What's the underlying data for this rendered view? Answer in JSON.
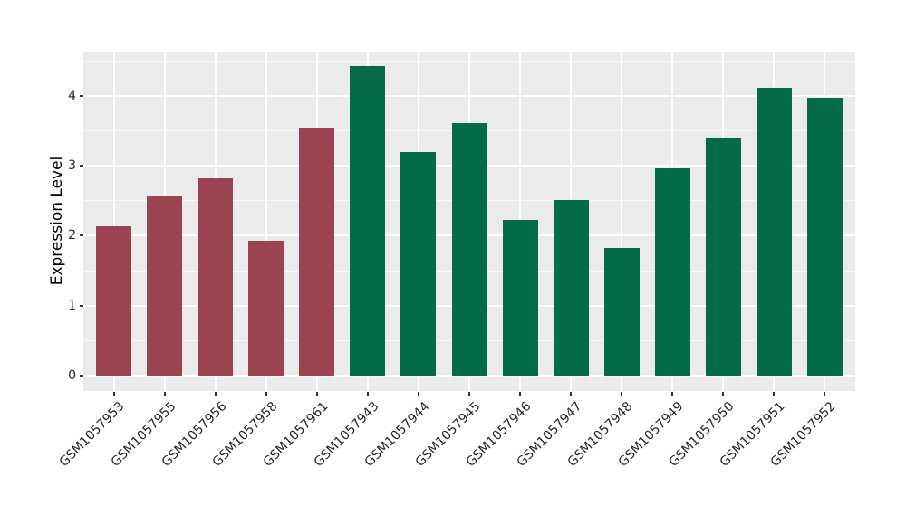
{
  "figure": {
    "background": "#FFFFFF",
    "panel_background": "#EBEBEB",
    "grid_color": "#FFFFFF",
    "tick_mark_color": "#333333",
    "text_color": "#262626",
    "red_group_color": "#9C4351",
    "green_group_color": "#046B4A"
  },
  "chart_data": {
    "type": "bar",
    "title": "",
    "xlabel": "",
    "ylabel": "Expression Level",
    "legend": "none",
    "grid": "horizontal major+minor white, vertical major white at category centers",
    "categories": [
      "GSM1057953",
      "GSM1057955",
      "GSM1057956",
      "GSM1057958",
      "GSM1057961",
      "GSM1057943",
      "GSM1057944",
      "GSM1057945",
      "GSM1057946",
      "GSM1057947",
      "GSM1057948",
      "GSM1057949",
      "GSM1057950",
      "GSM1057951",
      "GSM1057952"
    ],
    "values": [
      2.13,
      2.56,
      2.82,
      1.93,
      3.54,
      4.42,
      3.19,
      3.61,
      2.23,
      2.51,
      1.82,
      2.96,
      3.4,
      4.11,
      3.97
    ],
    "bar_colors": [
      "#9C4351",
      "#9C4351",
      "#9C4351",
      "#9C4351",
      "#9C4351",
      "#046B4A",
      "#046B4A",
      "#046B4A",
      "#046B4A",
      "#046B4A",
      "#046B4A",
      "#046B4A",
      "#046B4A",
      "#046B4A",
      "#046B4A"
    ],
    "yticks": [
      0,
      1,
      2,
      3,
      4
    ],
    "ylim": [
      -0.22,
      4.63
    ],
    "x_tick_angle_deg": 45
  }
}
